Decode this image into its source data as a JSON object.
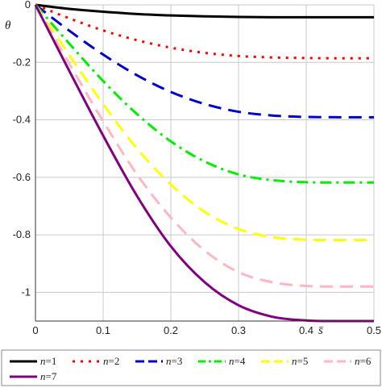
{
  "chart_data": {
    "type": "line",
    "xlabel": "s̄",
    "ylabel": "θ",
    "xlim": [
      0,
      0.5
    ],
    "ylim": [
      -1.1,
      0
    ],
    "x_ticks": [
      "0",
      "0.1",
      "0.2",
      "0.3",
      "0.4",
      "0.5"
    ],
    "y_ticks": [
      "0",
      "-0.2",
      "-0.4",
      "-0.6",
      "-0.8",
      "-1"
    ],
    "grid": true,
    "legend_position": "bottom",
    "x": [
      0,
      0.05,
      0.1,
      0.15,
      0.2,
      0.25,
      0.3,
      0.35,
      0.4,
      0.45,
      0.5
    ],
    "series": [
      {
        "name": "n=1",
        "label_n": "n",
        "label_val": "=1",
        "color": "#000000",
        "style": "solid",
        "values": [
          0,
          -0.014,
          -0.024,
          -0.032,
          -0.037,
          -0.04,
          -0.042,
          -0.043,
          -0.043,
          -0.043,
          -0.043
        ]
      },
      {
        "name": "n=2",
        "label_n": "n",
        "label_val": "=2",
        "color": "#ff0000",
        "style": "dot",
        "values": [
          0,
          -0.047,
          -0.089,
          -0.123,
          -0.149,
          -0.167,
          -0.178,
          -0.183,
          -0.185,
          -0.186,
          -0.186
        ]
      },
      {
        "name": "n=3",
        "label_n": "n",
        "label_val": "=3",
        "color": "#0000cc",
        "style": "longdash",
        "values": [
          0,
          -0.09,
          -0.173,
          -0.245,
          -0.303,
          -0.345,
          -0.372,
          -0.385,
          -0.39,
          -0.391,
          -0.391
        ]
      },
      {
        "name": "n=4",
        "label_n": "n",
        "label_val": "=4",
        "color": "#00ee00",
        "style": "dashdot",
        "values": [
          0,
          -0.135,
          -0.265,
          -0.38,
          -0.475,
          -0.545,
          -0.59,
          -0.61,
          -0.617,
          -0.618,
          -0.618
        ]
      },
      {
        "name": "n=5",
        "label_n": "n",
        "label_val": "=5",
        "color": "#ffff00",
        "style": "longdash",
        "values": [
          0,
          -0.175,
          -0.345,
          -0.5,
          -0.625,
          -0.72,
          -0.78,
          -0.808,
          -0.817,
          -0.818,
          -0.818
        ]
      },
      {
        "name": "n=6",
        "label_n": "n",
        "label_val": "=6",
        "color": "#ffb6c1",
        "style": "longdash",
        "values": [
          0,
          -0.205,
          -0.405,
          -0.59,
          -0.74,
          -0.855,
          -0.93,
          -0.965,
          -0.978,
          -0.98,
          -0.98
        ]
      },
      {
        "name": "n=7",
        "label_n": "n",
        "label_val": "=7",
        "color": "#800080",
        "style": "solid",
        "values": [
          0,
          -0.23,
          -0.455,
          -0.665,
          -0.84,
          -0.965,
          -1.045,
          -1.085,
          -1.098,
          -1.1,
          -1.1
        ]
      }
    ]
  }
}
